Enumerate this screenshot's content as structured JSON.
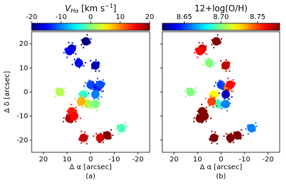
{
  "chart_data": [
    {
      "type": "map",
      "title": {
        "symbol": "V",
        "subscript": "Hα",
        "unit": " [km s",
        "exponent": "−1",
        "close": "]"
      },
      "xlabel": "Δ α [arcsec]",
      "ylabel": "Δ δ [arcsec]",
      "caption": "(a)",
      "xlim": [
        25,
        -25
      ],
      "ylim": [
        -25,
        25
      ],
      "xticks": [
        20,
        10,
        0,
        -10,
        -20
      ],
      "yticks": [
        20,
        10,
        0,
        -10,
        -20
      ],
      "ytick_labels": true,
      "colormap": "jet",
      "clim": [
        -20,
        20
      ],
      "cticks": [
        -20,
        -10,
        0,
        10,
        20
      ],
      "x": [
        8,
        9,
        5,
        -2,
        2,
        0,
        -3,
        3,
        1,
        4,
        8,
        9,
        7,
        -2,
        13,
        -2,
        -4,
        -7,
        -4,
        3,
        -13
      ],
      "y": [
        18,
        17,
        12,
        11,
        21,
        3,
        2,
        -1,
        -5,
        -4,
        -8,
        -11,
        -10,
        -5,
        0,
        -1,
        3,
        -18,
        -19,
        -19,
        -15
      ],
      "values": [
        -18,
        -15,
        -15,
        -18,
        -20,
        -12,
        -15,
        -3,
        2,
        8,
        14,
        18,
        15,
        0,
        2,
        -10,
        -12,
        20,
        17,
        17,
        -2
      ]
    },
    {
      "type": "map",
      "title": {
        "text": "12+log(O/H)"
      },
      "xlabel": "Δ α [arcsec]",
      "caption": "(b)",
      "xlim": [
        25,
        -25
      ],
      "ylim": [
        -25,
        25
      ],
      "xticks": [
        20,
        10,
        0,
        -10,
        -20
      ],
      "yticks": [
        20,
        10,
        0,
        -10,
        -20
      ],
      "ytick_labels": false,
      "colormap": "jet",
      "clim": [
        8.62,
        8.78
      ],
      "cticks": [
        8.65,
        {
          "value": 8.7,
          "label": "8.70"
        },
        8.75
      ],
      "x": [
        8,
        9,
        5,
        -2,
        2,
        0,
        -3,
        3,
        1,
        4,
        8,
        9,
        7,
        -2,
        13,
        -2,
        -4,
        -7,
        -4,
        3,
        -13
      ],
      "y": [
        18,
        17,
        12,
        11,
        21,
        3,
        2,
        -1,
        -5,
        -4,
        -8,
        -11,
        -10,
        -5,
        0,
        -1,
        3,
        -18,
        -19,
        -19,
        -15
      ],
      "values": [
        8.77,
        8.76,
        8.7,
        8.77,
        8.78,
        8.65,
        8.74,
        8.72,
        8.69,
        8.75,
        8.78,
        8.78,
        8.78,
        8.66,
        8.7,
        8.63,
        8.76,
        8.78,
        8.78,
        8.78,
        8.66
      ]
    }
  ]
}
